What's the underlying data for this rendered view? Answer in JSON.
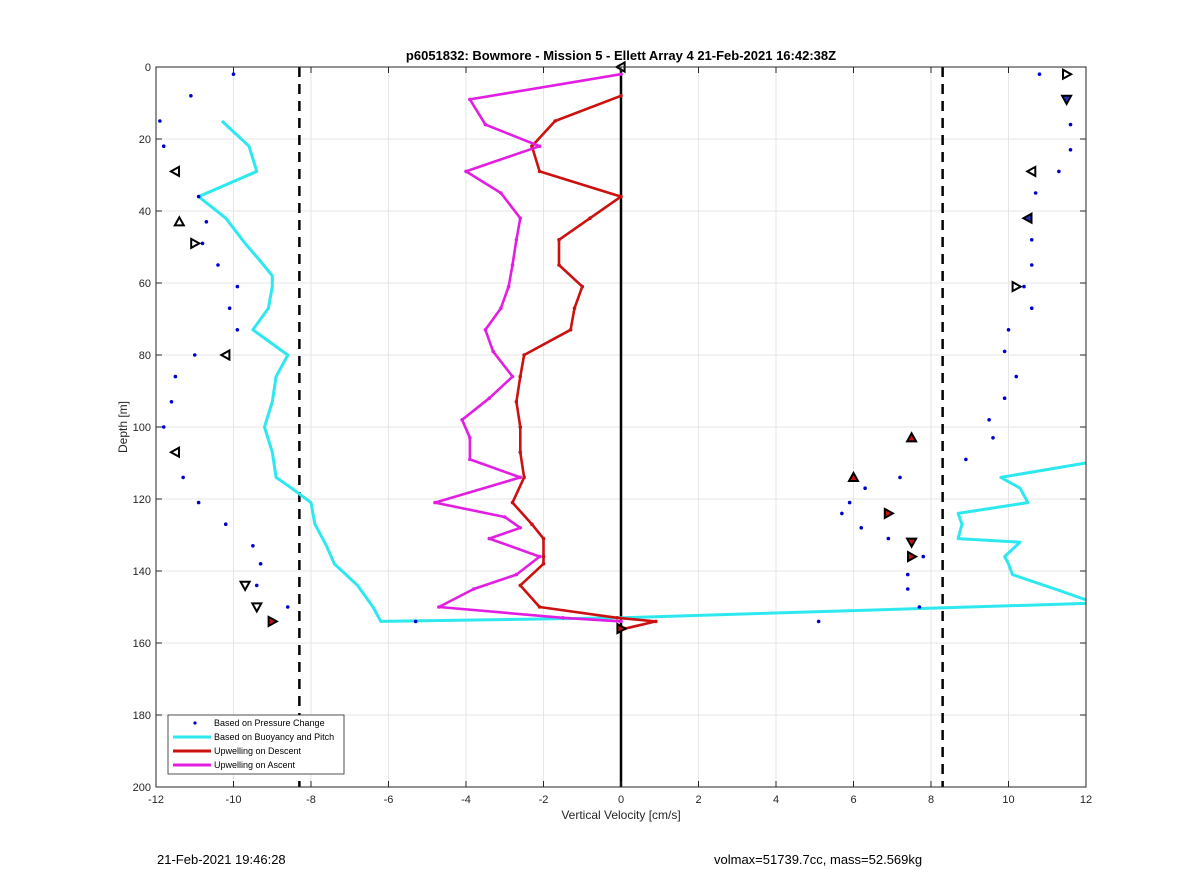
{
  "footer": {
    "timestamp": "21-Feb-2021 19:46:28",
    "info": "volmax=51739.7cc, mass=52.569kg"
  },
  "chart_data": {
    "type": "scatter",
    "title": "p6051832: Bowmore - Mission 5 - Ellett Array 4 21-Feb-2021 16:42:38Z",
    "xlabel": "Vertical Velocity [cm/s]",
    "ylabel": "Depth [m]",
    "xlim": [
      -12,
      12
    ],
    "ylim": [
      0,
      200
    ],
    "y_reversed": true,
    "grid": true,
    "xticks": [
      -12,
      -10,
      -8,
      -6,
      -4,
      -2,
      0,
      2,
      4,
      6,
      8,
      10,
      12
    ],
    "yticks": [
      0,
      20,
      40,
      60,
      80,
      100,
      120,
      140,
      160,
      180,
      200
    ],
    "reference_lines": [
      {
        "x": -8.3,
        "style": "dashed",
        "color": "#000000"
      },
      {
        "x": 8.3,
        "style": "dashed",
        "color": "#000000"
      },
      {
        "x": 0,
        "style": "solid",
        "color": "#000000"
      }
    ],
    "legend": {
      "placement": "bottom-left"
    },
    "series": [
      {
        "name": "Based on Pressure Change",
        "kind": "points",
        "color": "#0000cc",
        "points": [
          [
            -10.0,
            2
          ],
          [
            -11.1,
            8
          ],
          [
            -11.9,
            15
          ],
          [
            -11.8,
            22
          ],
          [
            -10.9,
            36
          ],
          [
            -10.7,
            43
          ],
          [
            -10.8,
            49
          ],
          [
            -10.4,
            55
          ],
          [
            -9.9,
            61
          ],
          [
            -10.1,
            67
          ],
          [
            -9.9,
            73
          ],
          [
            -11.0,
            80
          ],
          [
            -11.5,
            86
          ],
          [
            -11.6,
            93
          ],
          [
            -11.8,
            100
          ],
          [
            -11.5,
            107
          ],
          [
            -11.3,
            114
          ],
          [
            -10.9,
            121
          ],
          [
            -10.2,
            127
          ],
          [
            -9.5,
            133
          ],
          [
            -9.3,
            138
          ],
          [
            -9.4,
            144
          ],
          [
            -8.6,
            150
          ],
          [
            -9.0,
            154
          ],
          [
            -5.3,
            154
          ],
          [
            10.8,
            2
          ],
          [
            11.5,
            9
          ],
          [
            11.6,
            16
          ],
          [
            11.6,
            23
          ],
          [
            11.3,
            29
          ],
          [
            10.7,
            35
          ],
          [
            10.5,
            42
          ],
          [
            10.6,
            48
          ],
          [
            10.6,
            55
          ],
          [
            10.4,
            61
          ],
          [
            10.6,
            67
          ],
          [
            10.0,
            73
          ],
          [
            9.9,
            79
          ],
          [
            10.2,
            86
          ],
          [
            9.9,
            92
          ],
          [
            9.5,
            98
          ],
          [
            9.6,
            103
          ],
          [
            8.9,
            109
          ],
          [
            7.2,
            114
          ],
          [
            6.3,
            117
          ],
          [
            5.9,
            121
          ],
          [
            5.7,
            124
          ],
          [
            6.9,
            124
          ],
          [
            6.2,
            128
          ],
          [
            6.9,
            131
          ],
          [
            7.8,
            136
          ],
          [
            7.4,
            141
          ],
          [
            7.4,
            145
          ],
          [
            7.7,
            150
          ],
          [
            5.1,
            154
          ]
        ]
      },
      {
        "name": "Based on Buoyancy and Pitch",
        "kind": "line",
        "color": "#2ee8f0",
        "segments": [
          [
            [
              -10.3,
              15
            ],
            [
              -9.6,
              22
            ],
            [
              -9.4,
              29
            ],
            [
              -10.9,
              36
            ],
            [
              -10.2,
              42
            ],
            [
              -9.7,
              49
            ],
            [
              -9.3,
              54
            ],
            [
              -9.0,
              58
            ],
            [
              -9.0,
              61
            ],
            [
              -9.1,
              67
            ],
            [
              -9.5,
              73
            ],
            [
              -8.6,
              80
            ],
            [
              -8.9,
              86
            ],
            [
              -9.0,
              93
            ],
            [
              -9.2,
              100
            ],
            [
              -9.0,
              107
            ],
            [
              -8.9,
              114
            ],
            [
              -8.5,
              117
            ],
            [
              -8.0,
              121
            ],
            [
              -7.9,
              127
            ],
            [
              -7.6,
              133
            ],
            [
              -7.4,
              138
            ],
            [
              -6.8,
              144
            ],
            [
              -6.4,
              150
            ],
            [
              -6.2,
              154
            ],
            [
              0.0,
              153
            ],
            [
              12.0,
              149
            ]
          ],
          [
            [
              12.0,
              110
            ],
            [
              9.8,
              114
            ],
            [
              10.3,
              117
            ],
            [
              10.5,
              121
            ],
            [
              8.7,
              124
            ],
            [
              8.8,
              127
            ],
            [
              8.7,
              131
            ],
            [
              10.3,
              132
            ],
            [
              9.9,
              136
            ],
            [
              10.0,
              138
            ],
            [
              10.1,
              141
            ],
            [
              11.2,
              145
            ],
            [
              12.0,
              148
            ]
          ]
        ]
      },
      {
        "name": "Upwelling on Descent",
        "kind": "line",
        "color": "#cc1111",
        "points": [
          [
            0.0,
            8
          ],
          [
            -1.7,
            15
          ],
          [
            -2.3,
            22
          ],
          [
            -2.1,
            29
          ],
          [
            0.0,
            36
          ],
          [
            -0.8,
            42
          ],
          [
            -1.6,
            48
          ],
          [
            -1.6,
            55
          ],
          [
            -1.0,
            61
          ],
          [
            -1.2,
            67
          ],
          [
            -1.3,
            73
          ],
          [
            -2.5,
            80
          ],
          [
            -2.6,
            86
          ],
          [
            -2.7,
            93
          ],
          [
            -2.6,
            100
          ],
          [
            -2.6,
            107
          ],
          [
            -2.5,
            114
          ],
          [
            -2.8,
            121
          ],
          [
            -2.3,
            127
          ],
          [
            -2.0,
            131
          ],
          [
            -2.0,
            136
          ],
          [
            -2.0,
            138
          ],
          [
            -2.6,
            144
          ],
          [
            -2.1,
            150
          ],
          [
            -0.1,
            153
          ],
          [
            0.9,
            154
          ],
          [
            0.1,
            156
          ]
        ]
      },
      {
        "name": "Upwelling on Ascent",
        "kind": "line",
        "color": "#e21ee2",
        "points": [
          [
            0.0,
            2
          ],
          [
            -3.9,
            9
          ],
          [
            -3.5,
            16
          ],
          [
            -2.1,
            22
          ],
          [
            -4.0,
            29
          ],
          [
            -3.1,
            35
          ],
          [
            -2.6,
            42
          ],
          [
            -2.7,
            48
          ],
          [
            -2.8,
            55
          ],
          [
            -2.9,
            61
          ],
          [
            -3.1,
            67
          ],
          [
            -3.5,
            73
          ],
          [
            -3.3,
            79
          ],
          [
            -2.8,
            86
          ],
          [
            -3.4,
            92
          ],
          [
            -4.1,
            98
          ],
          [
            -3.9,
            103
          ],
          [
            -3.9,
            109
          ],
          [
            -2.6,
            114
          ],
          [
            -4.8,
            121
          ],
          [
            -3.0,
            125
          ],
          [
            -2.6,
            128
          ],
          [
            -3.4,
            131
          ],
          [
            -2.1,
            136
          ],
          [
            -2.7,
            141
          ],
          [
            -3.8,
            145
          ],
          [
            -4.7,
            150
          ],
          [
            -1.5,
            153
          ],
          [
            0.0,
            154
          ]
        ]
      }
    ],
    "markers": [
      {
        "x": 0.0,
        "y": 0,
        "shape": "tri-left",
        "fill": "#ffffff"
      },
      {
        "x": 11.5,
        "y": 2,
        "shape": "tri-right",
        "fill": "#ffffff"
      },
      {
        "x": 11.5,
        "y": 9,
        "shape": "tri-down",
        "fill": "#2233cc"
      },
      {
        "x": -11.5,
        "y": 29,
        "shape": "tri-left",
        "fill": "#ffffff"
      },
      {
        "x": 10.6,
        "y": 29,
        "shape": "tri-left",
        "fill": "#ffffff"
      },
      {
        "x": 10.5,
        "y": 42,
        "shape": "tri-left",
        "fill": "#2233cc"
      },
      {
        "x": -11.4,
        "y": 43,
        "shape": "tri-up",
        "fill": "#ffffff"
      },
      {
        "x": -11.0,
        "y": 49,
        "shape": "tri-right",
        "fill": "#ffffff"
      },
      {
        "x": 10.2,
        "y": 61,
        "shape": "tri-right",
        "fill": "#ffffff"
      },
      {
        "x": -10.2,
        "y": 80,
        "shape": "tri-left",
        "fill": "#ffffff"
      },
      {
        "x": 7.5,
        "y": 103,
        "shape": "tri-up",
        "fill": "#cc1111"
      },
      {
        "x": -11.5,
        "y": 107,
        "shape": "tri-left",
        "fill": "#ffffff"
      },
      {
        "x": 6.0,
        "y": 114,
        "shape": "tri-up",
        "fill": "#cc1111"
      },
      {
        "x": 6.9,
        "y": 124,
        "shape": "tri-right",
        "fill": "#cc1111"
      },
      {
        "x": 7.5,
        "y": 132,
        "shape": "tri-down",
        "fill": "#cc1111"
      },
      {
        "x": 7.5,
        "y": 136,
        "shape": "tri-right",
        "fill": "#cc1111"
      },
      {
        "x": -9.7,
        "y": 144,
        "shape": "tri-down",
        "fill": "#ffffff"
      },
      {
        "x": -9.4,
        "y": 150,
        "shape": "tri-down",
        "fill": "#ffffff"
      },
      {
        "x": -9.0,
        "y": 154,
        "shape": "tri-right",
        "fill": "#cc1111"
      },
      {
        "x": 0.0,
        "y": 156,
        "shape": "tri-right",
        "fill": "#cc1111"
      }
    ]
  }
}
